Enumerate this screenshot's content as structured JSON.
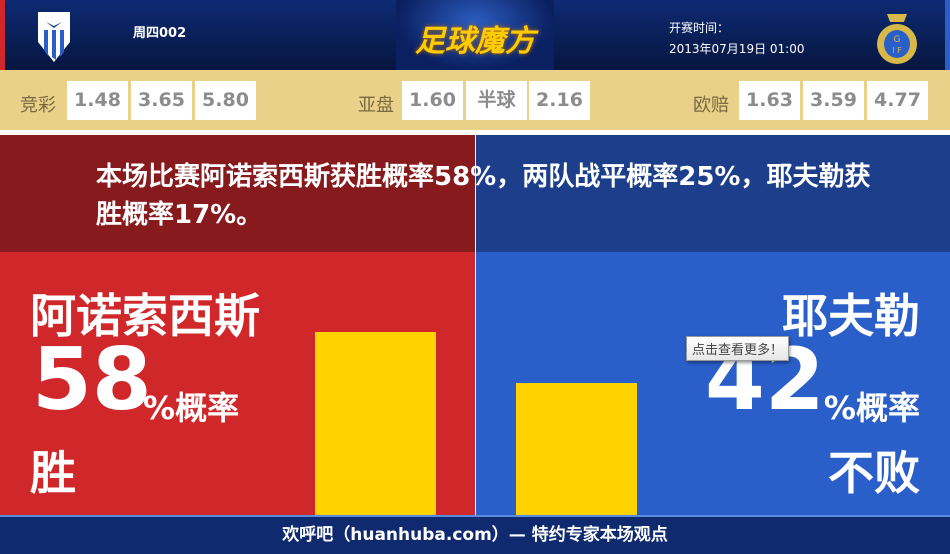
{
  "header": {
    "match_no": "周四002",
    "logo_text": "足球魔方",
    "time_label": "开赛时间：",
    "time_value": "2013年07月19日 01:00",
    "home_crest": "shield-crest-icon",
    "away_crest": "crown-crest-icon"
  },
  "odds": {
    "jingcai": {
      "label": "竞彩",
      "values": [
        "1.48",
        "3.65",
        "5.80"
      ]
    },
    "yapan": {
      "label": "亚盘",
      "values": [
        "1.60",
        "半球",
        "2.16"
      ]
    },
    "oupei": {
      "label": "欧赔",
      "values": [
        "1.63",
        "3.59",
        "4.77"
      ]
    }
  },
  "summary": "本场比赛阿诺索西斯获胜概率58%，两队战平概率25%，耶夫勒获胜概率17%。",
  "home": {
    "name": "阿诺索西斯",
    "percent": 58,
    "percent_text": "58",
    "unit": "%概率",
    "outcome": "胜"
  },
  "away": {
    "name": "耶夫勒",
    "percent": 42,
    "percent_text": "42",
    "unit": "%概率",
    "outcome": "不败"
  },
  "tooltip": "点击查看更多！",
  "footer": "欢呼吧（huanhuba.com）— 特约专家本场观点",
  "colors": {
    "home": "#d0282a",
    "away": "#2a5fc9",
    "bar": "#ffd200"
  }
}
